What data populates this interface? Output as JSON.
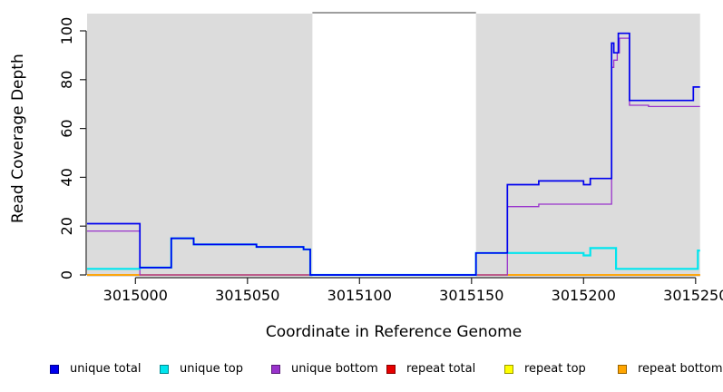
{
  "chart_data": {
    "type": "line",
    "step": true,
    "title": "",
    "xlabel": "Coordinate in Reference Genome",
    "ylabel": "Read Coverage Depth",
    "xlim": [
      3014978,
      3015252
    ],
    "ylim": [
      0,
      100
    ],
    "x_ticks": [
      3015000,
      3015050,
      3015100,
      3015150,
      3015200,
      3015250
    ],
    "y_ticks": [
      0,
      20,
      40,
      60,
      80,
      100
    ],
    "grid": false,
    "legend_position": "bottom",
    "shaded_regions": {
      "color": "#dcdcdc",
      "x_ranges": [
        [
          3014978,
          3015079
        ],
        [
          3015152,
          3015252
        ]
      ]
    },
    "gap_marker_line": {
      "x_range": [
        3015079,
        3015152
      ],
      "color": "#7f7f7f"
    },
    "draw_order": [
      "repeat top",
      "repeat total",
      "repeat bottom",
      "unique bottom",
      "unique top",
      "unique total"
    ],
    "series": [
      {
        "name": "unique total",
        "color": "#0000EE",
        "width": 1.7,
        "steps": [
          [
            3014978,
            21
          ],
          [
            3015002,
            3
          ],
          [
            3015016,
            15
          ],
          [
            3015026,
            12.5
          ],
          [
            3015054,
            11.5
          ],
          [
            3015075,
            10.5
          ],
          [
            3015078,
            0
          ],
          [
            3015152,
            9
          ],
          [
            3015166,
            37
          ],
          [
            3015180,
            38.5
          ],
          [
            3015200,
            37
          ],
          [
            3015203,
            39.5
          ],
          [
            3015212.5,
            95
          ],
          [
            3015213.5,
            91
          ],
          [
            3015215.5,
            99
          ],
          [
            3015220.5,
            71.5
          ],
          [
            3015249,
            77
          ]
        ]
      },
      {
        "name": "unique top",
        "color": "#00E5EE",
        "width": 2.2,
        "steps": [
          [
            3014978,
            2.5
          ],
          [
            3015002,
            3
          ],
          [
            3015016,
            15
          ],
          [
            3015026,
            12.5
          ],
          [
            3015054,
            11.5
          ],
          [
            3015075,
            10.5
          ],
          [
            3015078,
            0
          ],
          [
            3015152,
            9
          ],
          [
            3015200,
            8
          ],
          [
            3015203,
            11
          ],
          [
            3015214.5,
            2.5
          ],
          [
            3015251,
            10
          ]
        ]
      },
      {
        "name": "unique bottom",
        "color": "#9932CC",
        "width": 1.3,
        "steps": [
          [
            3014978,
            18
          ],
          [
            3015002,
            0
          ],
          [
            3015166,
            28
          ],
          [
            3015180,
            29
          ],
          [
            3015212.5,
            85
          ],
          [
            3015213.5,
            88
          ],
          [
            3015215,
            91
          ],
          [
            3015216,
            97
          ],
          [
            3015220.5,
            69.5
          ],
          [
            3015229,
            69
          ]
        ]
      },
      {
        "name": "repeat total",
        "color": "#E60000",
        "width": 1.3,
        "steps": [
          [
            3014978,
            0
          ]
        ]
      },
      {
        "name": "repeat top",
        "color": "#FFFF00",
        "width": 1.2,
        "steps": [
          [
            3014978,
            0
          ]
        ]
      },
      {
        "name": "repeat bottom",
        "color": "#FFA500",
        "width": 1.7,
        "steps": [
          [
            3014978,
            0
          ]
        ]
      }
    ]
  },
  "legend": {
    "items": [
      {
        "label": "unique total",
        "color": "#0000EE"
      },
      {
        "label": "unique top",
        "color": "#00E5EE"
      },
      {
        "label": "unique bottom",
        "color": "#9932CC"
      },
      {
        "label": "repeat total",
        "color": "#E60000"
      },
      {
        "label": "repeat top",
        "color": "#FFFF00"
      },
      {
        "label": "repeat bottom",
        "color": "#FFA500"
      }
    ]
  }
}
